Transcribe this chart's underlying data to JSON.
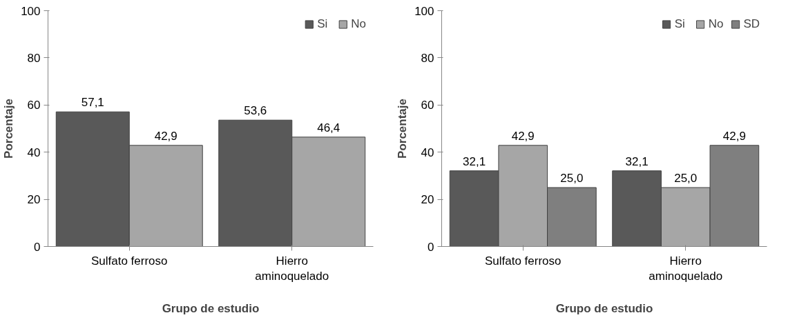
{
  "chart_data": [
    {
      "type": "bar",
      "categories": [
        "Sulfato ferroso",
        "Hierro aminoquelado"
      ],
      "xlabel": "Grupo de estudio",
      "ylabel": "Porcentaje",
      "ylim": [
        0,
        100
      ],
      "yticks": [
        0,
        20,
        40,
        60,
        80,
        100
      ],
      "grid": false,
      "legend": "top right",
      "series": [
        {
          "name": "Si",
          "color": "#595959",
          "values": [
            57.1,
            53.6
          ],
          "value_labels": [
            "57,1",
            "53,6"
          ]
        },
        {
          "name": "No",
          "color": "#a6a6a6",
          "values": [
            42.9,
            46.4
          ],
          "value_labels": [
            "42,9",
            "46,4"
          ]
        }
      ]
    },
    {
      "type": "bar",
      "categories": [
        "Sulfato ferroso",
        "Hierro aminoquelado"
      ],
      "xlabel": "Grupo de estudio",
      "ylabel": "Porcentaje",
      "ylim": [
        0,
        100
      ],
      "yticks": [
        0,
        20,
        40,
        60,
        80,
        100
      ],
      "grid": false,
      "legend": "top right",
      "series": [
        {
          "name": "Si",
          "color": "#595959",
          "values": [
            32.1,
            32.1
          ],
          "value_labels": [
            "32,1",
            "32,1"
          ]
        },
        {
          "name": "No",
          "color": "#a6a6a6",
          "values": [
            42.9,
            25.0
          ],
          "value_labels": [
            "42,9",
            "25,0"
          ]
        },
        {
          "name": "SD",
          "color": "#7f7f7f",
          "values": [
            25.0,
            42.9
          ],
          "value_labels": [
            "25,0",
            "42,9"
          ]
        }
      ]
    }
  ]
}
